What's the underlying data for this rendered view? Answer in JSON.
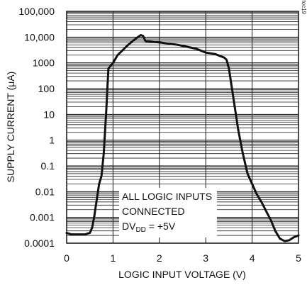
{
  "chart_data": {
    "type": "line",
    "xlabel": "LOGIC INPUT VOLTAGE (V)",
    "ylabel_main": "SUPPLY CURRENT (",
    "ylabel_mu": "μ",
    "ylabel_unit": "A)",
    "xlim": [
      0,
      5
    ],
    "ylim": [
      0.0001,
      100000
    ],
    "y_scale": "log",
    "grid": true,
    "x_ticks": [
      {
        "value": 0,
        "label": "0"
      },
      {
        "value": 1,
        "label": "1"
      },
      {
        "value": 2,
        "label": "2"
      },
      {
        "value": 3,
        "label": "3"
      },
      {
        "value": 4,
        "label": "4"
      },
      {
        "value": 5,
        "label": "5"
      }
    ],
    "y_ticks": [
      {
        "value": 100000,
        "label": "100,000"
      },
      {
        "value": 10000,
        "label": "10,000"
      },
      {
        "value": 1000,
        "label": "1000"
      },
      {
        "value": 100,
        "label": "100"
      },
      {
        "value": 10,
        "label": "10"
      },
      {
        "value": 1,
        "label": "1"
      },
      {
        "value": 0.1,
        "label": "0.1"
      },
      {
        "value": 0.01,
        "label": "0.01"
      },
      {
        "value": 0.001,
        "label": "0.001"
      },
      {
        "value": 0.0001,
        "label": "0.0001"
      }
    ],
    "series": [
      {
        "x": [
          0,
          0.1,
          0.2,
          0.3,
          0.4,
          0.5,
          0.55,
          0.6,
          0.65,
          0.7,
          0.75,
          0.8,
          0.85,
          0.9,
          1.0,
          1.1,
          1.2,
          1.3,
          1.4,
          1.5,
          1.6,
          1.65,
          1.7,
          1.75,
          1.8,
          2.0,
          2.2,
          2.4,
          2.6,
          2.8,
          3.0,
          3.2,
          3.4,
          3.45,
          3.5,
          3.55,
          3.6,
          3.65,
          3.7,
          3.8,
          3.9,
          4.0,
          4.1,
          4.2,
          4.3,
          4.4,
          4.5,
          4.6,
          4.7,
          4.8,
          4.9,
          5.0
        ],
        "y": [
          0.00025,
          0.00022,
          0.00022,
          0.00022,
          0.00022,
          0.00025,
          0.0004,
          0.0012,
          0.005,
          0.02,
          0.04,
          0.3,
          10,
          600,
          1000,
          2000,
          3000,
          4500,
          6500,
          9000,
          12000,
          11000,
          7000,
          6900,
          6800,
          6200,
          5600,
          5000,
          4200,
          3500,
          2500,
          2200,
          1600,
          1300,
          600,
          150,
          40,
          10,
          2.5,
          0.3,
          0.05,
          0.02,
          0.008,
          0.004,
          0.0018,
          0.0008,
          0.0003,
          0.00015,
          0.00012,
          0.00013,
          0.00017,
          0.0002
        ]
      }
    ],
    "annotation_lines": [
      "ALL LOGIC INPUTS",
      "CONNECTED"
    ],
    "annotation_dv": {
      "prefix": "DV",
      "sub": "DD",
      "suffix": " = +5V"
    },
    "figure_code": "MAX5773 toc19"
  }
}
